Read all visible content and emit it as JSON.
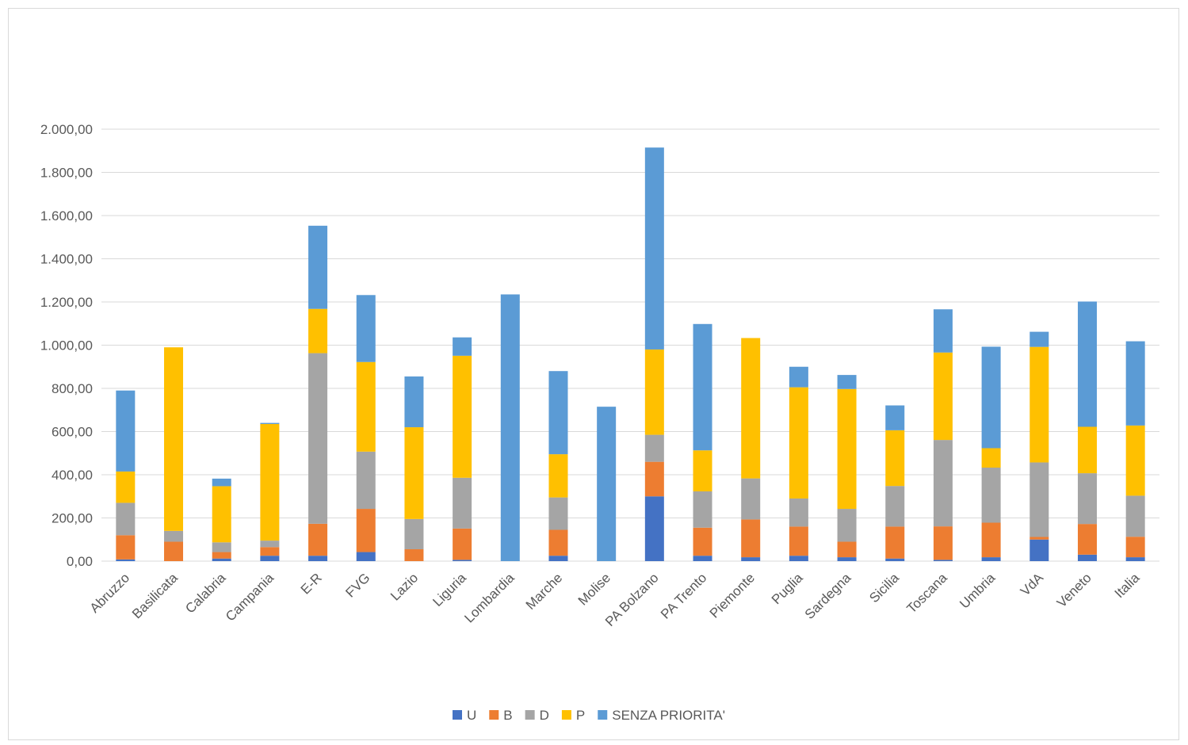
{
  "chart_data": {
    "type": "bar",
    "stacked": true,
    "title": "",
    "xlabel": "",
    "ylabel": "",
    "ylim": [
      0,
      2000
    ],
    "y_ticks": [
      0,
      200,
      400,
      600,
      800,
      1000,
      1200,
      1400,
      1600,
      1800,
      2000
    ],
    "y_tick_labels": [
      "0,00",
      "200,00",
      "400,00",
      "600,00",
      "800,00",
      "1.000,00",
      "1.200,00",
      "1.400,00",
      "1.600,00",
      "1.800,00",
      "2.000,00"
    ],
    "grid": true,
    "legend_position": "bottom",
    "categories": [
      "Abruzzo",
      "Basilicata",
      "Calabria",
      "Campania",
      "E-R",
      "FVG",
      "Lazio",
      "Liguria",
      "Lombardia",
      "Marche",
      "Molise",
      "PA Bolzano",
      "PA Trento",
      "Piemonte",
      "Puglia",
      "Sardegna",
      "Sicilia",
      "Toscana",
      "Umbria",
      "VdA",
      "Veneto",
      "Italia"
    ],
    "series": [
      {
        "name": "U",
        "color": "#4472C4",
        "values": [
          8,
          0,
          12,
          25,
          25,
          42,
          0,
          6,
          0,
          25,
          0,
          300,
          25,
          18,
          25,
          18,
          12,
          6,
          18,
          100,
          30,
          18
        ]
      },
      {
        "name": "B",
        "color": "#ED7D31",
        "values": [
          112,
          90,
          30,
          40,
          148,
          200,
          55,
          145,
          0,
          120,
          0,
          160,
          130,
          175,
          135,
          72,
          148,
          155,
          160,
          12,
          142,
          95
        ]
      },
      {
        "name": "D",
        "color": "#A5A5A5",
        "values": [
          150,
          50,
          45,
          30,
          790,
          265,
          140,
          235,
          0,
          150,
          0,
          125,
          168,
          190,
          130,
          152,
          188,
          400,
          255,
          345,
          235,
          190
        ]
      },
      {
        "name": "P",
        "color": "#FFC000",
        "values": [
          145,
          850,
          260,
          540,
          205,
          415,
          425,
          565,
          0,
          200,
          0,
          395,
          190,
          650,
          515,
          555,
          258,
          405,
          90,
          535,
          215,
          325
        ]
      },
      {
        "name": "SENZA PRIORITA'",
        "color": "#5B9BD5",
        "values": [
          375,
          0,
          35,
          5,
          385,
          310,
          235,
          85,
          1235,
          385,
          715,
          935,
          585,
          0,
          95,
          65,
          115,
          200,
          470,
          70,
          580,
          390
        ]
      }
    ]
  }
}
